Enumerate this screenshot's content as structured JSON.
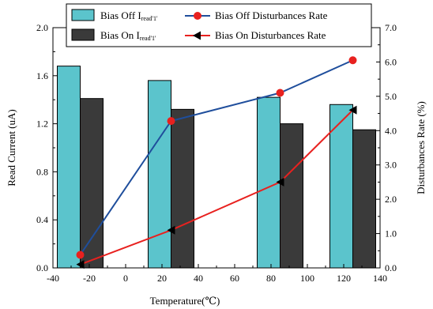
{
  "chart_data": {
    "type": "bar+line",
    "xlabel": "Temperature(℃)",
    "ylabel_left": "Read Current (uA)",
    "ylabel_right": "Disturbances Rate (%)",
    "xlim": [
      -40,
      140
    ],
    "xticks": [
      "-40",
      "-20",
      "0",
      "20",
      "40",
      "60",
      "80",
      "100",
      "120",
      "140"
    ],
    "ylim_left": [
      0.0,
      2.0
    ],
    "yticks_left": [
      "0.0",
      "0.4",
      "0.8",
      "1.2",
      "1.6",
      "2.0"
    ],
    "ylim_right": [
      0.0,
      7.0
    ],
    "yticks_right": [
      "0.0",
      "1.0",
      "2.0",
      "3.0",
      "4.0",
      "5.0",
      "6.0",
      "7.0"
    ],
    "categories": [
      -25,
      25,
      85,
      125
    ],
    "bar_series": [
      {
        "name": "Bias Off",
        "subscript": "read'1'",
        "full_label": "Bias Off I",
        "color": "#5bc4cc",
        "values": [
          1.68,
          1.56,
          1.42,
          1.36
        ]
      },
      {
        "name": "Bias On",
        "subscript": "read'1'",
        "full_label": "Bias On I",
        "color": "#3a3a3a",
        "values": [
          1.41,
          1.32,
          1.2,
          1.15
        ]
      }
    ],
    "line_series": [
      {
        "name": "Bias Off  Disturbances Rate",
        "color": "#1f4e9c",
        "marker": "circle",
        "marker_color": "#e8211f",
        "x": [
          -25,
          25,
          85,
          125
        ],
        "values": [
          0.38,
          4.28,
          5.1,
          6.05
        ]
      },
      {
        "name": "Bias On  Disturbances Rate",
        "color": "#e8211f",
        "marker": "triangle-left",
        "marker_color": "#000000",
        "x": [
          -25,
          25,
          85,
          125
        ],
        "values": [
          0.1,
          1.1,
          2.5,
          4.6
        ]
      }
    ],
    "grid": false,
    "legend_position": "top"
  }
}
